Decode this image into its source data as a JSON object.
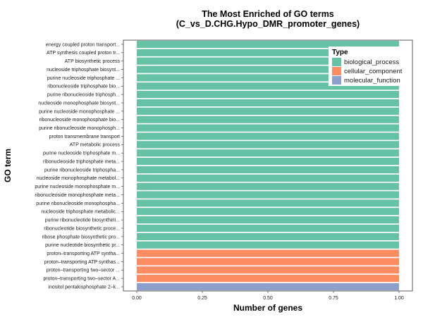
{
  "chart_data": {
    "type": "bar",
    "orientation": "horizontal",
    "title_lines": [
      "The Most Enriched of GO terms",
      "(C_vs_D.CHG.Hypo_DMR_promoter_genes)"
    ],
    "xlabel": "Number of genes",
    "ylabel": "GO term",
    "xlim": [
      0,
      1
    ],
    "xticks": [
      "0.00",
      "0.25",
      "0.50",
      "0.75",
      "1.00"
    ],
    "xtick_values": [
      0,
      0.25,
      0.5,
      0.75,
      1
    ],
    "legend": {
      "title": "Type",
      "placement": "top-right",
      "entries": [
        {
          "name": "biological_process",
          "color": "#66c2a5"
        },
        {
          "name": "cellular_component",
          "color": "#fc8d62"
        },
        {
          "name": "molecular_function",
          "color": "#8da0cb"
        }
      ]
    },
    "categories": [
      "energy coupled proton transport...",
      "ATP synthesis coupled proton tr...",
      "ATP biosynthetic process",
      "nucleoside triphosphate biosynt...",
      "purine nucleoside triphosphate ...",
      "ribonucleoside triphosphate bio...",
      "purine ribonucleoside triphosph...",
      "nucleoside monophosphate biosynt...",
      "purine nucleoside monophosphate ...",
      "ribonucleoside monophosphate bio...",
      "purine ribonucleoside monophosph...",
      "proton transmembrane transport",
      "ATP metabolic process",
      "purine nucleoside triphosphate m...",
      "ribonucleoside triphosphate meta...",
      "purine ribonucleoside triphospha...",
      "nucleoside monophosphate metabol...",
      "purine nucleoside monophosphate m...",
      "ribonucleoside monophosphate meta...",
      "purine ribonucleoside monophospha...",
      "nucleoside triphosphate metabolic...",
      "purine ribonucleotide biosyntheti...",
      "ribonucleotide biosynthetic proce...",
      "ribose phosphate biosynthetic pro...",
      "purine nucleotide biosynthetic pr...",
      "proton–transporting ATP syntha...",
      "proton–transporting ATP synthas...",
      "proton–transporting two–sector ...",
      "proton–transporting two–sector A...",
      "inositol pentakisphosphate 2–k..."
    ],
    "values": [
      1,
      1,
      1,
      1,
      1,
      1,
      1,
      1,
      1,
      1,
      1,
      1,
      1,
      1,
      1,
      1,
      1,
      1,
      1,
      1,
      1,
      1,
      1,
      1,
      1,
      1,
      1,
      1,
      1,
      1
    ],
    "types": [
      "biological_process",
      "biological_process",
      "biological_process",
      "biological_process",
      "biological_process",
      "biological_process",
      "biological_process",
      "biological_process",
      "biological_process",
      "biological_process",
      "biological_process",
      "biological_process",
      "biological_process",
      "biological_process",
      "biological_process",
      "biological_process",
      "biological_process",
      "biological_process",
      "biological_process",
      "biological_process",
      "biological_process",
      "biological_process",
      "biological_process",
      "biological_process",
      "biological_process",
      "cellular_component",
      "cellular_component",
      "cellular_component",
      "cellular_component",
      "molecular_function"
    ],
    "grid": false
  }
}
